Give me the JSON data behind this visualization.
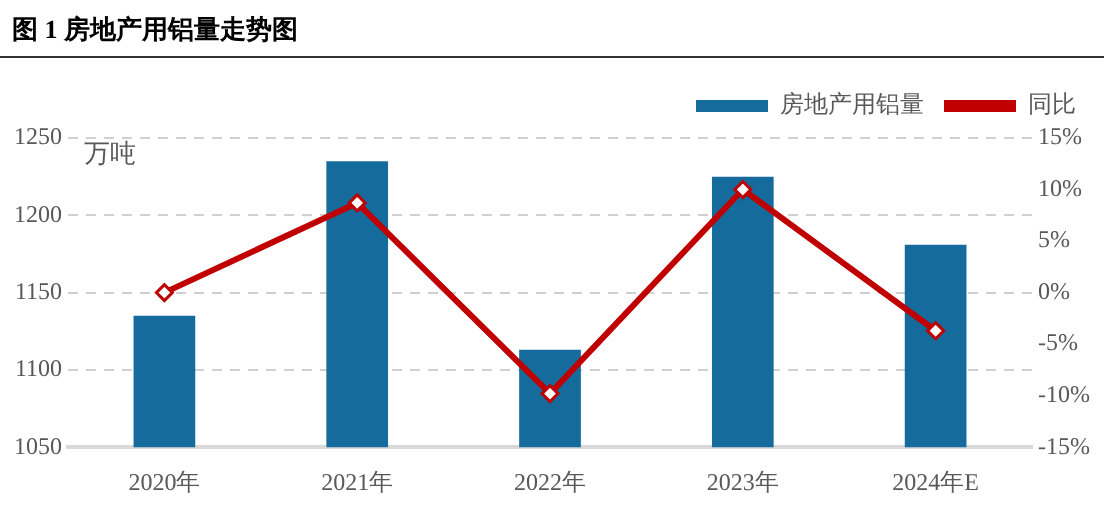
{
  "chart_data": {
    "type": "bar",
    "title": "图 1 房地产用铝量走势图",
    "ylabel": "万吨",
    "categories": [
      "2020年",
      "2021年",
      "2022年",
      "2023年",
      "2024年E"
    ],
    "series": [
      {
        "name": "房地产用铝量",
        "color": "#156b9c",
        "values": [
          1135,
          1235,
          1113,
          1225,
          1181
        ]
      },
      {
        "name": "同比",
        "type": "line",
        "axis": "y2",
        "color": "#c00000",
        "marker": "diamond",
        "values": [
          0,
          8.7,
          -9.8,
          10,
          -3.7
        ]
      }
    ],
    "ylim": [
      1050,
      1250
    ],
    "yticks": [
      1050,
      1100,
      1150,
      1200,
      1250
    ],
    "y2lim": [
      -15,
      15
    ],
    "y2ticks": [
      {
        "value": -15,
        "label": "-15%"
      },
      {
        "value": -10,
        "label": "-10%"
      },
      {
        "value": -5,
        "label": "-5%"
      },
      {
        "value": 0,
        "label": "0%"
      },
      {
        "value": 5,
        "label": "5%"
      },
      {
        "value": 10,
        "label": "10%"
      },
      {
        "value": 15,
        "label": "15%"
      }
    ],
    "grid": "y",
    "legend": "top right"
  }
}
